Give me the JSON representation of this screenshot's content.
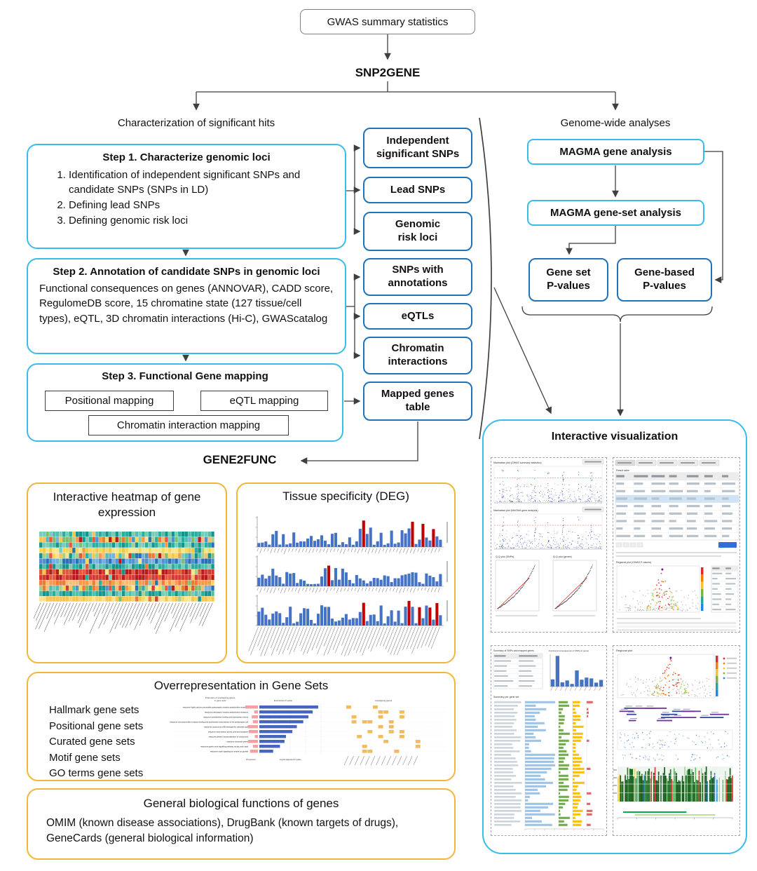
{
  "header": {
    "gwas_box": "GWAS summary statistics",
    "snp2gene": "SNP2GENE",
    "left_branch": "Characterization of significant hits",
    "right_branch": "Genome-wide analyses"
  },
  "steps": {
    "step1": {
      "title": "Step 1. Characterize genomic loci",
      "items": [
        "Identification of independent significant SNPs and candidate SNPs (SNPs in LD)",
        "Defining lead SNPs",
        "Defining genomic risk loci"
      ]
    },
    "step2": {
      "title": "Step 2. Annotation of candidate SNPs in genomic loci",
      "body": "Functional consequences on genes (ANNOVAR), CADD score, RegulomeDB score, 15 chromatine state (127 tissue/cell types), eQTL, 3D chromatin interactions (Hi-C), GWAScatalog"
    },
    "step3": {
      "title": "Step 3. Functional Gene mapping",
      "mappings": [
        "Positional mapping",
        "eQTL mapping",
        "Chromatin interaction mapping"
      ]
    }
  },
  "outputs": [
    "Independent significant SNPs",
    "Lead SNPs",
    "Genomic risk loci",
    "SNPs with annotations",
    "eQTLs",
    "Chromatin interactions",
    "Mapped genes table"
  ],
  "magma": {
    "gene_analysis": "MAGMA gene analysis",
    "geneset_analysis": "MAGMA gene-set analysis",
    "geneset_p": {
      "line1": "Gene set",
      "line2": "P-values"
    },
    "genebased_p": {
      "line1": "Gene-based",
      "line2": "P-values"
    }
  },
  "interactive_viz": {
    "title": "Interactive visualization",
    "panel_captions": {
      "manhattan_gwas": "Manhattan plot (GWAS summary statistics)",
      "manhattan_magma": "Manhattan plot (MAGMA gene analysis)",
      "qq_snps": "Q-Q plot (SNPs)",
      "qq_genes": "Q-Q plot (genes)",
      "result_table": "Result table",
      "regional_gwas": "Regional plot (GWAS P-values)",
      "snp_summary": "Summary of SNPs and mapped genes",
      "func_consequences": "Functional consequences of SNPs on genes",
      "geneset_summary": "Summary per gene set",
      "regional_plot": "Regional plot"
    }
  },
  "gene2func": {
    "label": "GENE2FUNC",
    "heatmap_title": "Interactive heatmap of gene expression",
    "tissue_title": "Tissue specificity (DEG)",
    "overrep": {
      "title": "Overrepresentation in Gene Sets",
      "gene_set_types": [
        "Hallmark gene sets",
        "Positional gene sets",
        "Curated gene sets",
        "Motif gene sets",
        "GO terms gene sets"
      ],
      "chart": {
        "header_left": "Proportion of overlapping genes in gene sets",
        "header_mid": "Enrichment P-value",
        "header_right": "overlapping genes",
        "xlabel_left": "Proportion",
        "xlabel_mid": "-log10 adjusted P-value",
        "rows": [
          "reactome highly calcium permeable postsynaptic nicotinic acetylcholine receptors",
          "reactome presynaptic nicotinic acetylcholine receptors",
          "reactome acetylcholine binding and downstream events",
          "reactome neurotransmitter receptor binding and downstream transmission in the postsynaptic cell",
          "reactome cytochrome p450 arranged by substrate type",
          "reactome transmission across chemical synapses",
          "reactome phase1 functionalization of compounds",
          "reactome neuronal system",
          "reactome gastrin creb signalling pathway via pkc and mapk",
          "reactome ncam signaling for neurite out growth"
        ]
      }
    },
    "biofunc": {
      "title": "General biological functions of genes",
      "body": "OMIM (known disease associations), DrugBank (known targets of drugs), GeneCards (general biological information)"
    }
  }
}
